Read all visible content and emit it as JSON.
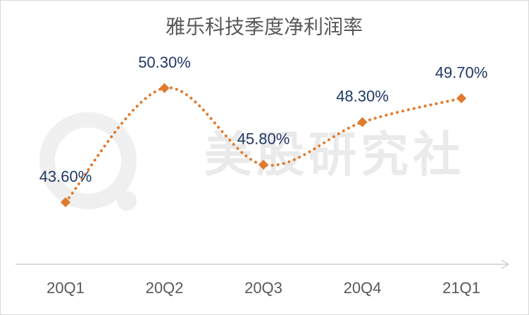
{
  "chart_data": {
    "type": "line",
    "title": "雅乐科技季度净利润率",
    "watermark": "美股研究社",
    "categories": [
      "20Q1",
      "20Q2",
      "20Q3",
      "20Q4",
      "21Q1"
    ],
    "values": [
      43.6,
      50.3,
      45.8,
      48.3,
      49.7
    ],
    "value_labels": [
      "43.60%",
      "50.30%",
      "45.80%",
      "48.30%",
      "49.70%"
    ],
    "color": "#e07b2e",
    "smooth": true,
    "line_style": "dotted"
  }
}
